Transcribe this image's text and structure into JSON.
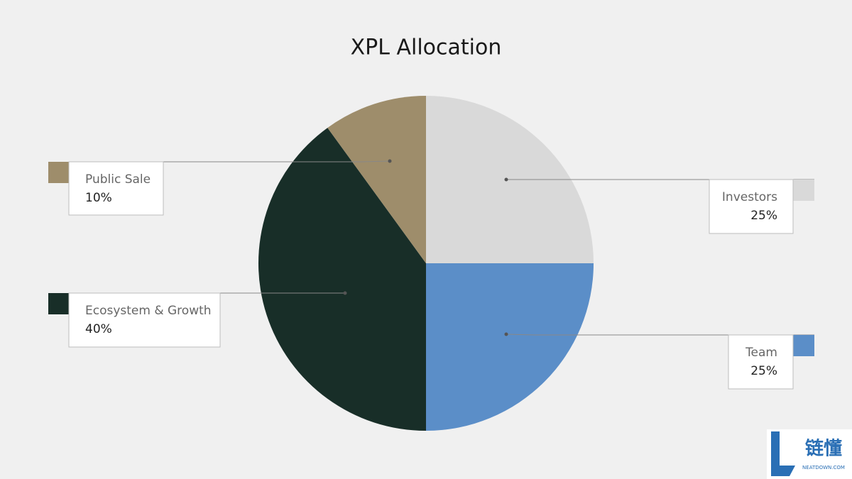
{
  "chart_data": {
    "type": "pie",
    "title": "XPL Allocation",
    "categories": [
      "Investors",
      "Team",
      "Ecosystem & Growth",
      "Public Sale"
    ],
    "values": [
      25,
      25,
      40,
      10
    ],
    "value_labels": [
      "25%",
      "25%",
      "40%",
      "10%"
    ],
    "colors": [
      "#d9d9d9",
      "#5b8ec8",
      "#182e28",
      "#9e8d6b"
    ]
  },
  "watermark": {
    "name": "链懂",
    "site": "NEATDOWN.COM"
  }
}
